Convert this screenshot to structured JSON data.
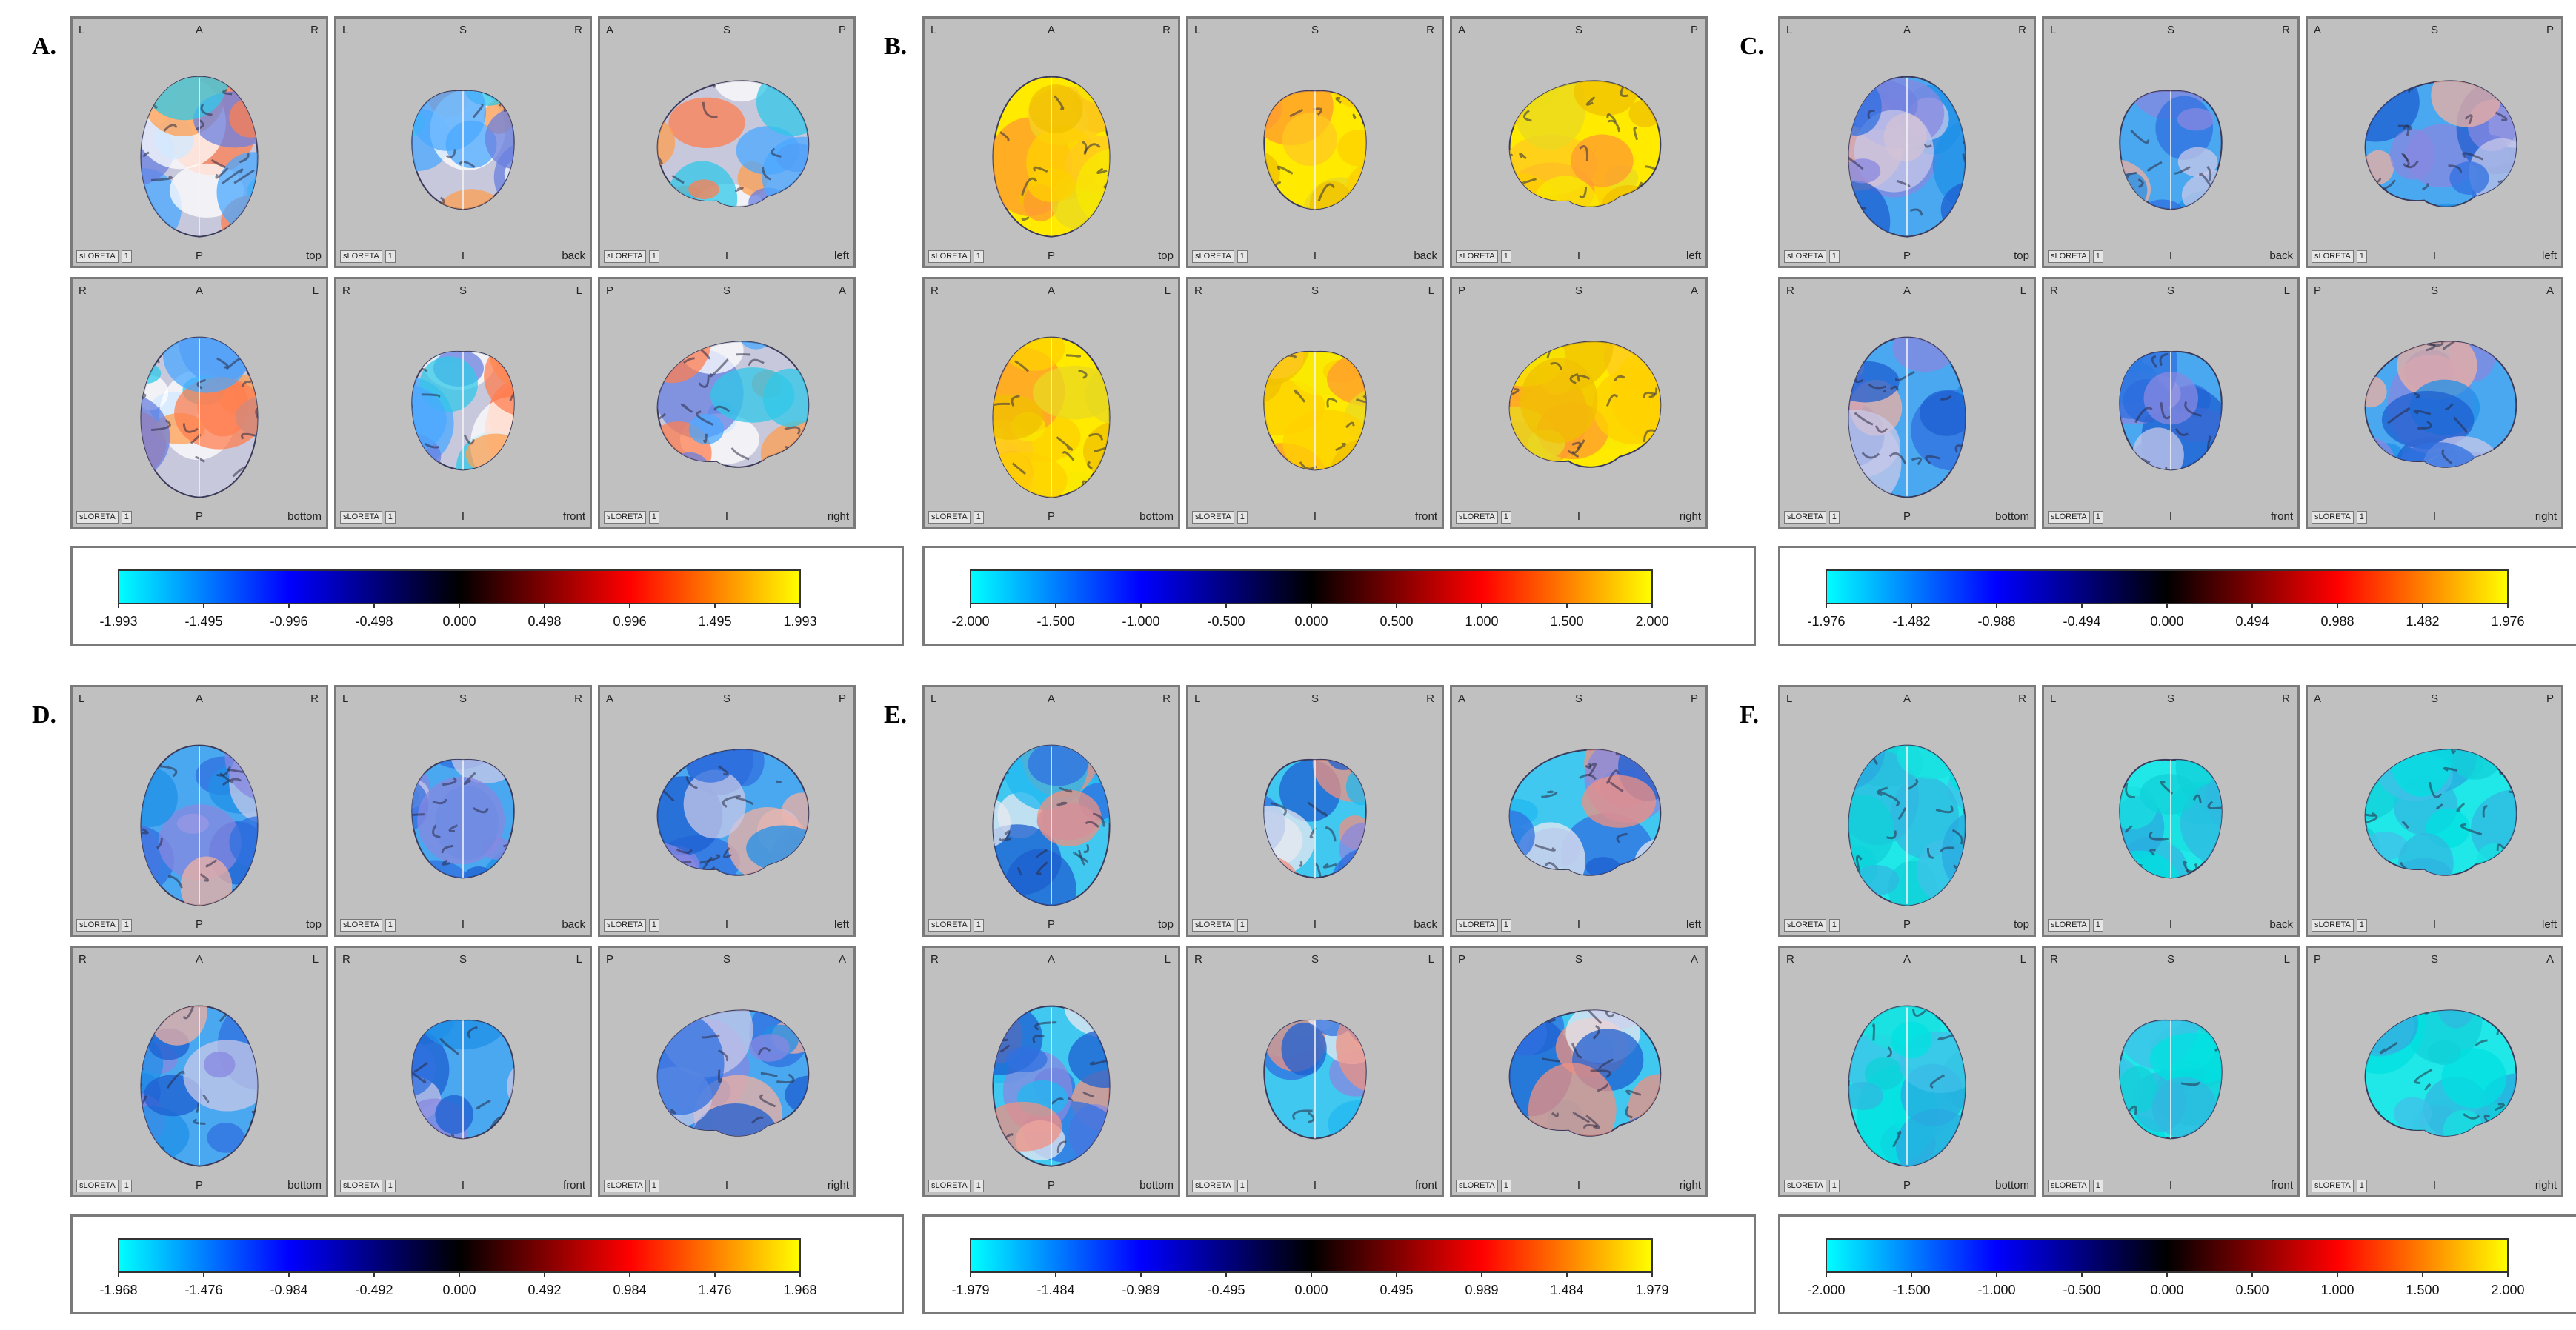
{
  "panels": [
    {
      "letter": "A.",
      "ticks": [
        "-1.993",
        "-1.495",
        "-0.996",
        "-0.498",
        "0.000",
        "0.498",
        "0.996",
        "1.495",
        "1.993"
      ],
      "tint": "mixed"
    },
    {
      "letter": "B.",
      "ticks": [
        "-2.000",
        "-1.500",
        "-1.000",
        "-0.500",
        "0.000",
        "0.500",
        "1.000",
        "1.500",
        "2.000"
      ],
      "tint": "yellow"
    },
    {
      "letter": "C.",
      "ticks": [
        "-1.976",
        "-1.482",
        "-0.988",
        "-0.494",
        "0.000",
        "0.494",
        "0.988",
        "1.482",
        "1.976"
      ],
      "tint": "blue"
    },
    {
      "letter": "D.",
      "ticks": [
        "-1.968",
        "-1.476",
        "-0.984",
        "-0.492",
        "0.000",
        "0.492",
        "0.984",
        "1.476",
        "1.968"
      ],
      "tint": "blue"
    },
    {
      "letter": "E.",
      "ticks": [
        "-1.979",
        "-1.484",
        "-0.989",
        "-0.495",
        "0.000",
        "0.495",
        "0.989",
        "1.484",
        "1.979"
      ],
      "tint": "bluemix"
    },
    {
      "letter": "F.",
      "ticks": [
        "-2.000",
        "-1.500",
        "-1.000",
        "-0.500",
        "0.000",
        "0.500",
        "1.000",
        "1.500",
        "2.000"
      ],
      "tint": "cyan"
    }
  ],
  "views": [
    {
      "tl": "L",
      "tc": "A",
      "tr": "R",
      "bc": "P",
      "br": "top",
      "shape": "axial"
    },
    {
      "tl": "L",
      "tc": "S",
      "tr": "R",
      "bc": "I",
      "br": "back",
      "shape": "coronal"
    },
    {
      "tl": "A",
      "tc": "S",
      "tr": "P",
      "bc": "I",
      "br": "left",
      "shape": "sagittal"
    },
    {
      "tl": "R",
      "tc": "A",
      "tr": "L",
      "bc": "P",
      "br": "bottom",
      "shape": "axial"
    },
    {
      "tl": "R",
      "tc": "S",
      "tr": "L",
      "bc": "I",
      "br": "front",
      "shape": "coronal"
    },
    {
      "tl": "P",
      "tc": "S",
      "tr": "A",
      "bc": "I",
      "br": "right",
      "shape": "sagittal"
    }
  ],
  "tag_label": "sLORETA",
  "tag_num": "1",
  "colormap": [
    "#00ffff",
    "#0000ff",
    "#000000",
    "#ff0000",
    "#ffff00"
  ]
}
